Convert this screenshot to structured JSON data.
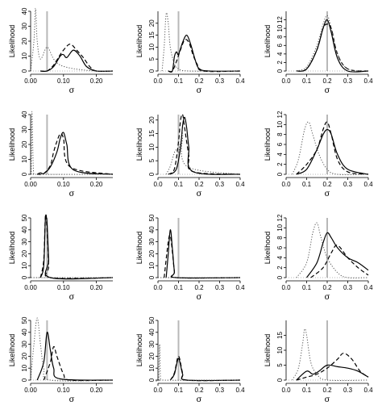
{
  "figure": {
    "xlabel": "σ",
    "ylabel": "Likelihood"
  },
  "chart_data": [
    {
      "type": "line",
      "xlim": [
        0,
        0.25
      ],
      "ylim": [
        0,
        40
      ],
      "xticks": [
        "0.00",
        "0.10",
        "0.20"
      ],
      "yticks": [
        "0",
        "10",
        "20",
        "30",
        "40"
      ],
      "xlabel": "σ",
      "ylabel": "Likelihood",
      "ref_line": 0.05,
      "series": [
        {
          "style": "solid",
          "x": [
            0.03,
            0.05,
            0.07,
            0.09,
            0.1,
            0.11,
            0.13,
            0.15,
            0.17,
            0.2,
            0.25
          ],
          "y": [
            0,
            0,
            3,
            10,
            11,
            9,
            14,
            10,
            3,
            0,
            0
          ]
        },
        {
          "style": "dashed",
          "x": [
            0.03,
            0.05,
            0.07,
            0.09,
            0.1,
            0.12,
            0.14,
            0.16,
            0.18,
            0.2,
            0.25
          ],
          "y": [
            0,
            0,
            4,
            11,
            14,
            18,
            14,
            9,
            3,
            0,
            0
          ]
        },
        {
          "style": "dotted",
          "x": [
            0.0,
            0.01,
            0.015,
            0.02,
            0.03,
            0.05,
            0.07,
            0.09,
            0.12,
            0.15,
            0.2,
            0.25
          ],
          "y": [
            0,
            20,
            42,
            20,
            8,
            16,
            8,
            4,
            2,
            1,
            0,
            0
          ]
        }
      ]
    },
    {
      "type": "line",
      "xlim": [
        0,
        0.4
      ],
      "ylim": [
        0,
        25
      ],
      "xticks": [
        "0.0",
        "0.1",
        "0.2",
        "0.3",
        "0.4"
      ],
      "yticks": [
        "0",
        "5",
        "10",
        "15",
        "20"
      ],
      "xlabel": "σ",
      "ylabel": "Likelihood",
      "ref_line": 0.1,
      "series": [
        {
          "style": "solid",
          "x": [
            0.05,
            0.07,
            0.08,
            0.09,
            0.1,
            0.12,
            0.14,
            0.16,
            0.18,
            0.2,
            0.25,
            0.4
          ],
          "y": [
            0,
            0,
            6,
            8,
            7,
            12,
            15,
            11,
            5,
            1,
            0,
            0
          ]
        },
        {
          "style": "dashed",
          "x": [
            0.05,
            0.07,
            0.09,
            0.11,
            0.13,
            0.15,
            0.17,
            0.19,
            0.22,
            0.4
          ],
          "y": [
            0,
            0,
            4,
            9,
            13,
            12,
            7,
            3,
            0,
            0
          ]
        },
        {
          "style": "dotted",
          "x": [
            0.02,
            0.03,
            0.04,
            0.05,
            0.06,
            0.08,
            0.1,
            0.15,
            0.4
          ],
          "y": [
            0,
            10,
            24,
            20,
            10,
            3,
            1,
            0,
            0
          ]
        }
      ]
    },
    {
      "type": "line",
      "xlim": [
        0,
        0.4
      ],
      "ylim": [
        0,
        14
      ],
      "xticks": [
        "0.0",
        "0.1",
        "0.2",
        "0.3",
        "0.4"
      ],
      "yticks": [
        "0",
        "2",
        "4",
        "6",
        "8",
        "10",
        "12"
      ],
      "xlabel": "σ",
      "ylabel": "Likelihood",
      "ref_line": 0.2,
      "series": [
        {
          "style": "solid",
          "x": [
            0.05,
            0.1,
            0.15,
            0.18,
            0.2,
            0.22,
            0.25,
            0.3,
            0.4
          ],
          "y": [
            0,
            0.5,
            5,
            10,
            12,
            9,
            3,
            0,
            0
          ]
        },
        {
          "style": "dashed",
          "x": [
            0.05,
            0.1,
            0.15,
            0.18,
            0.2,
            0.22,
            0.25,
            0.3,
            0.4
          ],
          "y": [
            0,
            0.5,
            5,
            10,
            11,
            10,
            4,
            0.5,
            0
          ]
        },
        {
          "style": "dotted",
          "x": [
            0.05,
            0.1,
            0.15,
            0.18,
            0.2,
            0.22,
            0.25,
            0.3,
            0.4
          ],
          "y": [
            0,
            1,
            6,
            11,
            13,
            10,
            4,
            0.5,
            0
          ]
        }
      ]
    },
    {
      "type": "line",
      "xlim": [
        0,
        0.25
      ],
      "ylim": [
        0,
        40
      ],
      "xticks": [
        "0.00",
        "0.10",
        "0.20"
      ],
      "yticks": [
        "0",
        "10",
        "20",
        "30",
        "40"
      ],
      "xlabel": "σ",
      "ylabel": "Likelihood",
      "ref_line": 0.05,
      "series": [
        {
          "style": "solid",
          "x": [
            0.02,
            0.03,
            0.04,
            0.06,
            0.08,
            0.09,
            0.1,
            0.11,
            0.13,
            0.25
          ],
          "y": [
            0,
            1,
            0.5,
            5,
            15,
            24,
            28,
            20,
            3,
            0
          ]
        },
        {
          "style": "dashed",
          "x": [
            0.02,
            0.04,
            0.06,
            0.07,
            0.08,
            0.09,
            0.1,
            0.12,
            0.25
          ],
          "y": [
            0,
            0.5,
            6,
            15,
            22,
            27,
            24,
            5,
            0
          ]
        },
        {
          "style": "dotted",
          "x": [
            0.002,
            0.004,
            0.008,
            0.012,
            0.02,
            0.25
          ],
          "y": [
            0,
            42,
            5,
            0.5,
            0,
            0
          ]
        }
      ]
    },
    {
      "type": "line",
      "xlim": [
        0,
        0.4
      ],
      "ylim": [
        0,
        22
      ],
      "xticks": [
        "0.0",
        "0.1",
        "0.2",
        "0.3",
        "0.4"
      ],
      "yticks": [
        "0",
        "5",
        "10",
        "15",
        "20"
      ],
      "xlabel": "σ",
      "ylabel": "Likelihood",
      "ref_line": 0.1,
      "series": [
        {
          "style": "solid",
          "x": [
            0.06,
            0.09,
            0.11,
            0.12,
            0.13,
            0.14,
            0.15,
            0.17,
            0.4
          ],
          "y": [
            0,
            2,
            10,
            18,
            21,
            17,
            10,
            1,
            0
          ]
        },
        {
          "style": "dashed",
          "x": [
            0.05,
            0.08,
            0.1,
            0.11,
            0.12,
            0.13,
            0.15,
            0.17,
            0.4
          ],
          "y": [
            0,
            2,
            12,
            20,
            22,
            17,
            7,
            1,
            0
          ]
        },
        {
          "style": "dotted",
          "x": [
            0.04,
            0.06,
            0.08,
            0.09,
            0.1,
            0.11,
            0.12,
            0.14,
            0.4
          ],
          "y": [
            0,
            3,
            8,
            9,
            8,
            12,
            15,
            3,
            0
          ]
        }
      ]
    },
    {
      "type": "line",
      "xlim": [
        0,
        0.4
      ],
      "ylim": [
        0,
        12
      ],
      "xticks": [
        "0.0",
        "0.1",
        "0.2",
        "0.3",
        "0.4"
      ],
      "yticks": [
        "0",
        "2",
        "4",
        "6",
        "8",
        "10",
        "12"
      ],
      "xlabel": "σ",
      "ylabel": "Likelihood",
      "ref_line": 0.2,
      "series": [
        {
          "style": "solid",
          "x": [
            0.05,
            0.1,
            0.15,
            0.18,
            0.2,
            0.22,
            0.25,
            0.3,
            0.4
          ],
          "y": [
            0,
            1,
            5,
            8,
            9,
            8,
            4,
            1,
            0
          ]
        },
        {
          "style": "dashed",
          "x": [
            0.05,
            0.1,
            0.15,
            0.18,
            0.2,
            0.22,
            0.25,
            0.3,
            0.4
          ],
          "y": [
            0,
            2,
            5,
            9,
            10.5,
            8,
            3,
            0.5,
            0
          ]
        },
        {
          "style": "dotted",
          "x": [
            0.03,
            0.06,
            0.09,
            0.11,
            0.13,
            0.16,
            0.2,
            0.25,
            0.4
          ],
          "y": [
            0,
            3,
            9,
            10.5,
            8,
            4,
            1,
            0,
            0
          ]
        }
      ]
    },
    {
      "type": "line",
      "xlim": [
        0,
        0.25
      ],
      "ylim": [
        0,
        50
      ],
      "xticks": [
        "0.00",
        "0.10",
        "0.20"
      ],
      "yticks": [
        "0",
        "10",
        "20",
        "30",
        "40",
        "50"
      ],
      "xlabel": "σ",
      "ylabel": "Likelihood",
      "ref_line": 0.05,
      "series": [
        {
          "style": "solid",
          "x": [
            0.03,
            0.04,
            0.045,
            0.05,
            0.055,
            0.06,
            0.25
          ],
          "y": [
            0,
            10,
            50,
            45,
            15,
            0,
            0
          ]
        },
        {
          "style": "dashed",
          "x": [
            0.03,
            0.04,
            0.045,
            0.05,
            0.055,
            0.06,
            0.25
          ],
          "y": [
            0,
            15,
            52,
            40,
            10,
            0,
            0
          ]
        },
        {
          "style": "dotted",
          "x": [
            0.0,
            0.01,
            0.25
          ],
          "y": [
            0,
            0,
            0
          ]
        }
      ]
    },
    {
      "type": "line",
      "xlim": [
        0,
        0.4
      ],
      "ylim": [
        0,
        50
      ],
      "xticks": [
        "0.0",
        "0.1",
        "0.2",
        "0.3",
        "0.4"
      ],
      "yticks": [
        "0",
        "10",
        "20",
        "30",
        "40",
        "50"
      ],
      "xlabel": "σ",
      "ylabel": "Likelihood",
      "ref_line": 0.1,
      "series": [
        {
          "style": "solid",
          "x": [
            0.04,
            0.05,
            0.06,
            0.07,
            0.08,
            0.09,
            0.4
          ],
          "y": [
            0,
            20,
            40,
            25,
            5,
            0,
            0
          ]
        },
        {
          "style": "dashed",
          "x": [
            0.03,
            0.05,
            0.06,
            0.07,
            0.08,
            0.09,
            0.4
          ],
          "y": [
            0,
            30,
            35,
            22,
            5,
            0,
            0
          ]
        },
        {
          "style": "dotted",
          "x": [
            0.0,
            0.4
          ],
          "y": [
            0,
            0
          ]
        }
      ]
    },
    {
      "type": "line",
      "xlim": [
        0,
        0.4
      ],
      "ylim": [
        0,
        12
      ],
      "xticks": [
        "0.0",
        "0.1",
        "0.2",
        "0.3",
        "0.4"
      ],
      "yticks": [
        "0",
        "2",
        "4",
        "6",
        "8",
        "10",
        "12"
      ],
      "xlabel": "σ",
      "ylabel": "Likelihood",
      "ref_line": 0.2,
      "series": [
        {
          "style": "solid",
          "x": [
            0.1,
            0.15,
            0.18,
            0.2,
            0.22,
            0.25,
            0.3,
            0.35,
            0.4
          ],
          "y": [
            0,
            3,
            7,
            9,
            8,
            6,
            4,
            3,
            1.5
          ]
        },
        {
          "style": "dashed",
          "x": [
            0.12,
            0.18,
            0.22,
            0.25,
            0.3,
            0.35,
            0.4
          ],
          "y": [
            0,
            2,
            5,
            6.5,
            4,
            2,
            0.5
          ]
        },
        {
          "style": "dotted",
          "x": [
            0.05,
            0.1,
            0.13,
            0.15,
            0.17,
            0.2,
            0.25,
            0.3,
            0.4
          ],
          "y": [
            0,
            3,
            9,
            11,
            8,
            4,
            1,
            0,
            0
          ]
        }
      ]
    },
    {
      "type": "line",
      "xlim": [
        0,
        0.25
      ],
      "ylim": [
        0,
        50
      ],
      "xticks": [
        "0.00",
        "0.10",
        "0.20"
      ],
      "yticks": [
        "0",
        "10",
        "20",
        "30",
        "40",
        "50"
      ],
      "xlabel": "σ",
      "ylabel": "Likelihood",
      "ref_line": 0.05,
      "series": [
        {
          "style": "solid",
          "x": [
            0.02,
            0.04,
            0.05,
            0.06,
            0.07,
            0.09,
            0.25
          ],
          "y": [
            0,
            15,
            40,
            25,
            10,
            1,
            0
          ]
        },
        {
          "style": "dashed",
          "x": [
            0.04,
            0.06,
            0.07,
            0.08,
            0.1,
            0.12,
            0.25
          ],
          "y": [
            0,
            15,
            28,
            20,
            5,
            0,
            0
          ]
        },
        {
          "style": "dotted",
          "x": [
            0.0,
            0.01,
            0.02,
            0.03,
            0.04,
            0.06,
            0.25
          ],
          "y": [
            0,
            30,
            52,
            30,
            10,
            0,
            0
          ]
        }
      ]
    },
    {
      "type": "line",
      "xlim": [
        0,
        0.4
      ],
      "ylim": [
        0,
        50
      ],
      "xticks": [
        "0.0",
        "0.1",
        "0.2",
        "0.3",
        "0.4"
      ],
      "yticks": [
        "0",
        "10",
        "20",
        "30",
        "40",
        "50"
      ],
      "xlabel": "σ",
      "ylabel": "Likelihood",
      "ref_line": 0.1,
      "series": [
        {
          "style": "solid",
          "x": [
            0.06,
            0.08,
            0.1,
            0.12,
            0.14,
            0.4
          ],
          "y": [
            0,
            5,
            18,
            5,
            0,
            0
          ]
        },
        {
          "style": "dashed",
          "x": [
            0.06,
            0.08,
            0.1,
            0.12,
            0.14,
            0.4
          ],
          "y": [
            0,
            6,
            20,
            6,
            0,
            0
          ]
        },
        {
          "style": "dotted",
          "x": [
            0.004,
            0.008,
            0.012,
            0.02,
            0.4
          ],
          "y": [
            0,
            30,
            2,
            0,
            0
          ]
        }
      ]
    },
    {
      "type": "line",
      "xlim": [
        0,
        0.4
      ],
      "ylim": [
        0,
        20
      ],
      "xticks": [
        "0.0",
        "0.1",
        "0.2",
        "0.3",
        "0.4"
      ],
      "yticks": [
        "0",
        "5",
        "10",
        "15"
      ],
      "xlabel": "σ",
      "ylabel": "Likelihood",
      "ref_line": 0.2,
      "series": [
        {
          "style": "solid",
          "x": [
            0.05,
            0.1,
            0.13,
            0.16,
            0.2,
            0.25,
            0.3,
            0.35,
            0.4
          ],
          "y": [
            0,
            3,
            2,
            3,
            5,
            4.5,
            4,
            3,
            1
          ]
        },
        {
          "style": "dashed",
          "x": [
            0.05,
            0.1,
            0.15,
            0.2,
            0.25,
            0.28,
            0.32,
            0.36,
            0.4
          ],
          "y": [
            0,
            1,
            2,
            4,
            7,
            9,
            7,
            3,
            1
          ]
        },
        {
          "style": "dotted",
          "x": [
            0.03,
            0.06,
            0.08,
            0.09,
            0.1,
            0.12,
            0.15,
            0.2,
            0.4
          ],
          "y": [
            0,
            4,
            12,
            17,
            15,
            6,
            2,
            0,
            0
          ]
        }
      ]
    }
  ]
}
